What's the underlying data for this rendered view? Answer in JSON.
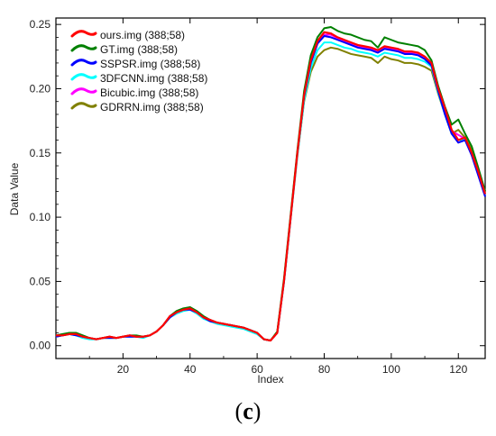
{
  "chart_data": {
    "type": "line",
    "title": "",
    "xlabel": "Index",
    "ylabel": "Data Value",
    "xlim": [
      0,
      128
    ],
    "ylim": [
      -0.01,
      0.255
    ],
    "xticks": [
      20,
      40,
      60,
      80,
      100,
      120
    ],
    "yticks": [
      0.0,
      0.05,
      0.1,
      0.15,
      0.2,
      0.25
    ],
    "ytick_labels": [
      "0.00",
      "0.05",
      "0.10",
      "0.15",
      "0.20",
      "0.25"
    ],
    "grid": false,
    "legend_position": "top-left",
    "caption_open": "(",
    "caption_letter": "c",
    "caption_close": ")",
    "x": [
      0,
      2,
      4,
      6,
      8,
      10,
      12,
      14,
      16,
      18,
      20,
      22,
      24,
      26,
      28,
      30,
      32,
      34,
      36,
      38,
      40,
      42,
      44,
      46,
      48,
      50,
      52,
      54,
      56,
      58,
      60,
      62,
      64,
      66,
      68,
      70,
      72,
      74,
      76,
      78,
      80,
      82,
      84,
      86,
      88,
      90,
      92,
      94,
      96,
      98,
      100,
      102,
      104,
      106,
      108,
      110,
      112,
      114,
      116,
      118,
      120,
      122,
      124,
      126,
      128
    ],
    "series": [
      {
        "name": "ours.img (388;58)",
        "color": "#ff0000",
        "values": [
          0.008,
          0.008,
          0.009,
          0.009,
          0.007,
          0.006,
          0.005,
          0.006,
          0.007,
          0.006,
          0.007,
          0.008,
          0.007,
          0.007,
          0.008,
          0.011,
          0.016,
          0.023,
          0.026,
          0.028,
          0.029,
          0.026,
          0.022,
          0.02,
          0.018,
          0.017,
          0.016,
          0.015,
          0.014,
          0.012,
          0.01,
          0.005,
          0.004,
          0.01,
          0.05,
          0.1,
          0.15,
          0.195,
          0.222,
          0.237,
          0.244,
          0.243,
          0.24,
          0.238,
          0.236,
          0.234,
          0.233,
          0.232,
          0.23,
          0.233,
          0.232,
          0.231,
          0.229,
          0.229,
          0.228,
          0.225,
          0.22,
          0.2,
          0.185,
          0.168,
          0.16,
          0.162,
          0.15,
          0.135,
          0.118
        ]
      },
      {
        "name": "GT.img (388;58)",
        "color": "#008000",
        "values": [
          0.008,
          0.009,
          0.01,
          0.01,
          0.008,
          0.006,
          0.005,
          0.006,
          0.007,
          0.006,
          0.007,
          0.008,
          0.008,
          0.007,
          0.008,
          0.011,
          0.016,
          0.023,
          0.027,
          0.029,
          0.03,
          0.027,
          0.023,
          0.02,
          0.018,
          0.017,
          0.016,
          0.015,
          0.014,
          0.012,
          0.01,
          0.005,
          0.004,
          0.011,
          0.052,
          0.102,
          0.152,
          0.198,
          0.226,
          0.24,
          0.247,
          0.248,
          0.245,
          0.243,
          0.242,
          0.24,
          0.238,
          0.237,
          0.232,
          0.24,
          0.238,
          0.236,
          0.235,
          0.234,
          0.233,
          0.23,
          0.222,
          0.202,
          0.186,
          0.172,
          0.176,
          0.165,
          0.155,
          0.138,
          0.12
        ]
      },
      {
        "name": "SSPSR.img (388;58)",
        "color": "#0000ff",
        "values": [
          0.007,
          0.008,
          0.009,
          0.008,
          0.007,
          0.006,
          0.005,
          0.006,
          0.006,
          0.006,
          0.007,
          0.007,
          0.007,
          0.007,
          0.008,
          0.011,
          0.016,
          0.022,
          0.026,
          0.028,
          0.028,
          0.026,
          0.022,
          0.019,
          0.018,
          0.017,
          0.016,
          0.015,
          0.014,
          0.012,
          0.01,
          0.005,
          0.004,
          0.01,
          0.05,
          0.1,
          0.15,
          0.194,
          0.22,
          0.235,
          0.241,
          0.24,
          0.238,
          0.236,
          0.234,
          0.232,
          0.231,
          0.23,
          0.228,
          0.231,
          0.23,
          0.229,
          0.227,
          0.227,
          0.226,
          0.223,
          0.218,
          0.198,
          0.18,
          0.165,
          0.158,
          0.16,
          0.148,
          0.132,
          0.116
        ]
      },
      {
        "name": "3DFCNN.img (388;58)",
        "color": "#00ffff",
        "values": [
          0.007,
          0.008,
          0.009,
          0.008,
          0.006,
          0.005,
          0.005,
          0.006,
          0.006,
          0.006,
          0.007,
          0.007,
          0.007,
          0.006,
          0.008,
          0.011,
          0.016,
          0.022,
          0.025,
          0.027,
          0.028,
          0.025,
          0.021,
          0.019,
          0.017,
          0.016,
          0.015,
          0.014,
          0.013,
          0.011,
          0.009,
          0.005,
          0.004,
          0.01,
          0.049,
          0.099,
          0.148,
          0.191,
          0.216,
          0.23,
          0.236,
          0.236,
          0.234,
          0.232,
          0.231,
          0.229,
          0.228,
          0.227,
          0.225,
          0.228,
          0.227,
          0.226,
          0.224,
          0.224,
          0.223,
          0.221,
          0.217,
          0.197,
          0.18,
          0.165,
          0.16,
          0.16,
          0.149,
          0.133,
          0.117
        ]
      },
      {
        "name": "Bicubic.img (388;58)",
        "color": "#ff00ff",
        "values": [
          0.008,
          0.008,
          0.009,
          0.009,
          0.007,
          0.006,
          0.005,
          0.006,
          0.007,
          0.006,
          0.007,
          0.008,
          0.007,
          0.007,
          0.008,
          0.011,
          0.016,
          0.023,
          0.026,
          0.028,
          0.029,
          0.026,
          0.022,
          0.02,
          0.018,
          0.017,
          0.016,
          0.015,
          0.014,
          0.012,
          0.01,
          0.005,
          0.004,
          0.01,
          0.05,
          0.1,
          0.15,
          0.194,
          0.221,
          0.236,
          0.242,
          0.242,
          0.239,
          0.237,
          0.235,
          0.233,
          0.232,
          0.231,
          0.229,
          0.232,
          0.231,
          0.23,
          0.228,
          0.228,
          0.227,
          0.224,
          0.219,
          0.199,
          0.183,
          0.167,
          0.164,
          0.161,
          0.15,
          0.134,
          0.118
        ]
      },
      {
        "name": "GDRRN.img (388;58)",
        "color": "#808000",
        "values": [
          0.007,
          0.008,
          0.009,
          0.009,
          0.007,
          0.006,
          0.005,
          0.006,
          0.006,
          0.006,
          0.007,
          0.008,
          0.007,
          0.007,
          0.008,
          0.011,
          0.016,
          0.022,
          0.026,
          0.028,
          0.029,
          0.026,
          0.022,
          0.02,
          0.018,
          0.017,
          0.016,
          0.015,
          0.014,
          0.012,
          0.01,
          0.005,
          0.004,
          0.01,
          0.05,
          0.099,
          0.148,
          0.19,
          0.213,
          0.225,
          0.23,
          0.232,
          0.231,
          0.229,
          0.227,
          0.226,
          0.225,
          0.224,
          0.22,
          0.225,
          0.223,
          0.222,
          0.22,
          0.22,
          0.219,
          0.217,
          0.214,
          0.196,
          0.18,
          0.165,
          0.168,
          0.162,
          0.152,
          0.136,
          0.12
        ]
      }
    ]
  }
}
